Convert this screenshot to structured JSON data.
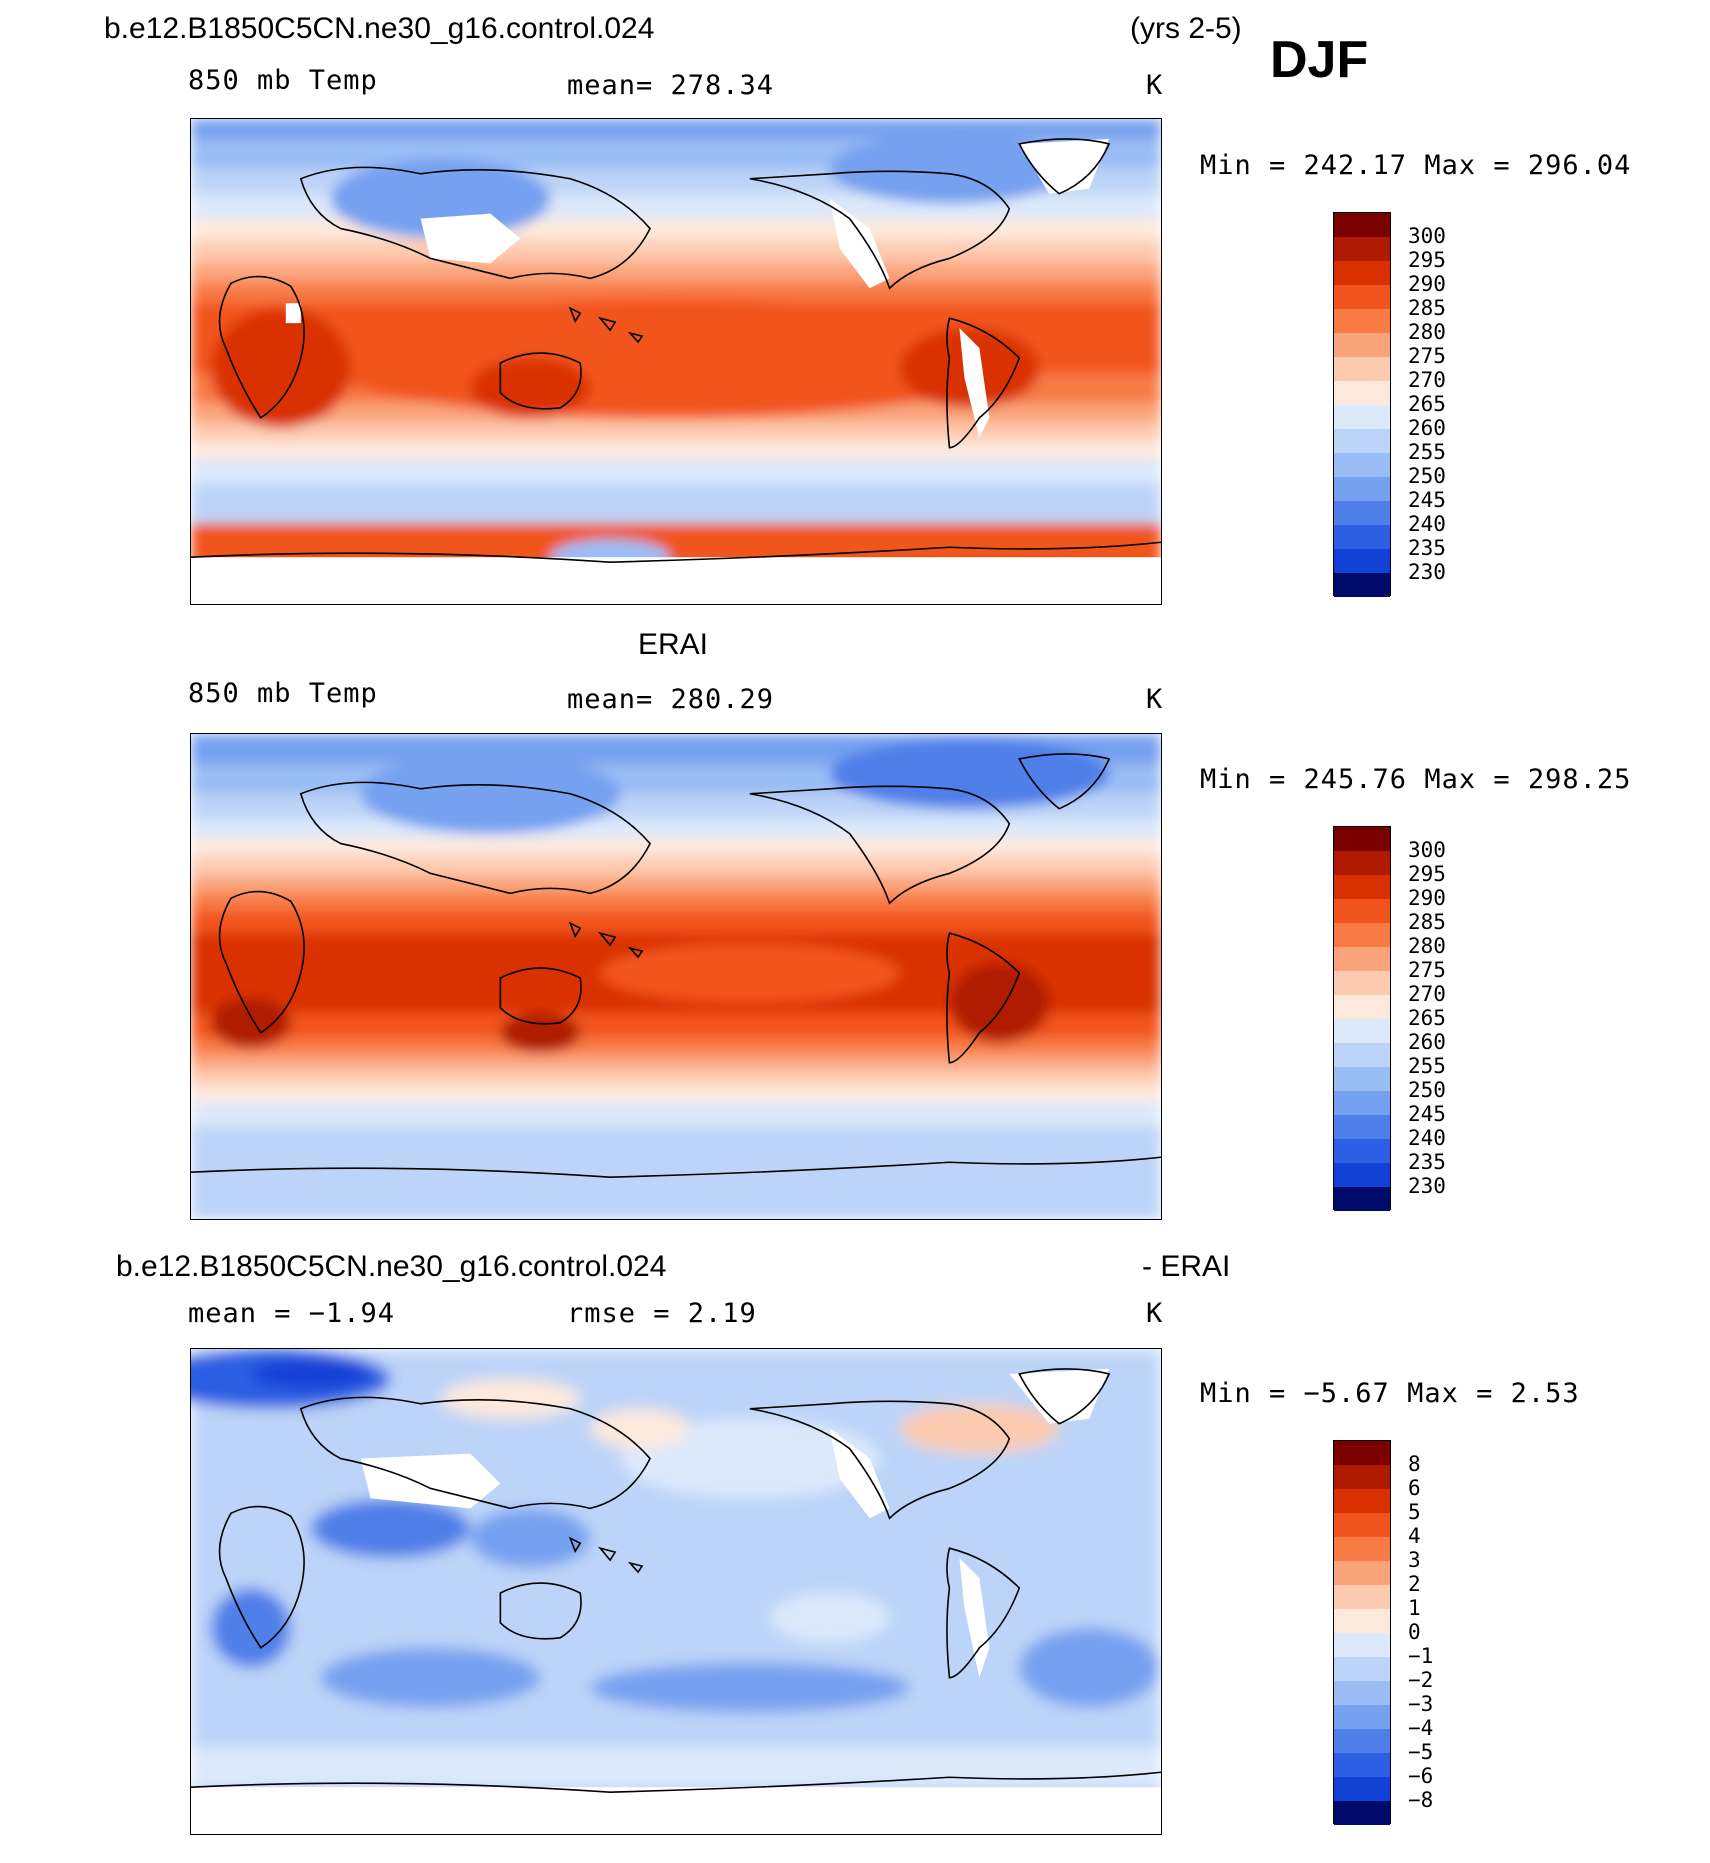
{
  "header": {
    "case_name": "b.e12.B1850C5CN.ne30_g16.control.024",
    "years": "(yrs 2-5)",
    "season": "DJF"
  },
  "panels": [
    {
      "id": "model",
      "title": "",
      "variable": "850 mb Temp",
      "stat_text": "mean=  278.34",
      "units": "K",
      "min_max": "Min  =  242.17  Max  =  296.04",
      "colorbar_labels": [
        "300",
        "295",
        "290",
        "285",
        "280",
        "275",
        "270",
        "265",
        "260",
        "255",
        "250",
        "245",
        "240",
        "235",
        "230"
      ]
    },
    {
      "id": "obs",
      "title": "ERAI",
      "variable": "850 mb Temp",
      "stat_text": "mean=  280.29",
      "units": "K",
      "min_max": "Min  =  245.76  Max  =  298.25",
      "colorbar_labels": [
        "300",
        "295",
        "290",
        "285",
        "280",
        "275",
        "270",
        "265",
        "260",
        "255",
        "250",
        "245",
        "240",
        "235",
        "230"
      ]
    },
    {
      "id": "diff",
      "title_left": "b.e12.B1850C5CN.ne30_g16.control.024",
      "title_right": "- ERAI",
      "variable": "mean =   −1.94",
      "stat_text": "rmse =    2.19",
      "units": "K",
      "min_max": "Min  =   −5.67  Max  =    2.53",
      "colorbar_labels": [
        "8",
        "6",
        "5",
        "4",
        "3",
        "2",
        "1",
        "0",
        "−1",
        "−2",
        "−3",
        "−4",
        "−5",
        "−6",
        "−8"
      ]
    }
  ],
  "colors": {
    "levels": [
      "#7a0000",
      "#b01a00",
      "#d93000",
      "#f2541f",
      "#f87a45",
      "#fba47c",
      "#fdcbb0",
      "#fde9dc",
      "#dce9fb",
      "#bcd4f8",
      "#9abdf5",
      "#76a0f0",
      "#4f7fe9",
      "#2c5fe3",
      "#1241d6",
      "#0a2bb0",
      "#021e8a",
      "#000a6b"
    ]
  }
}
